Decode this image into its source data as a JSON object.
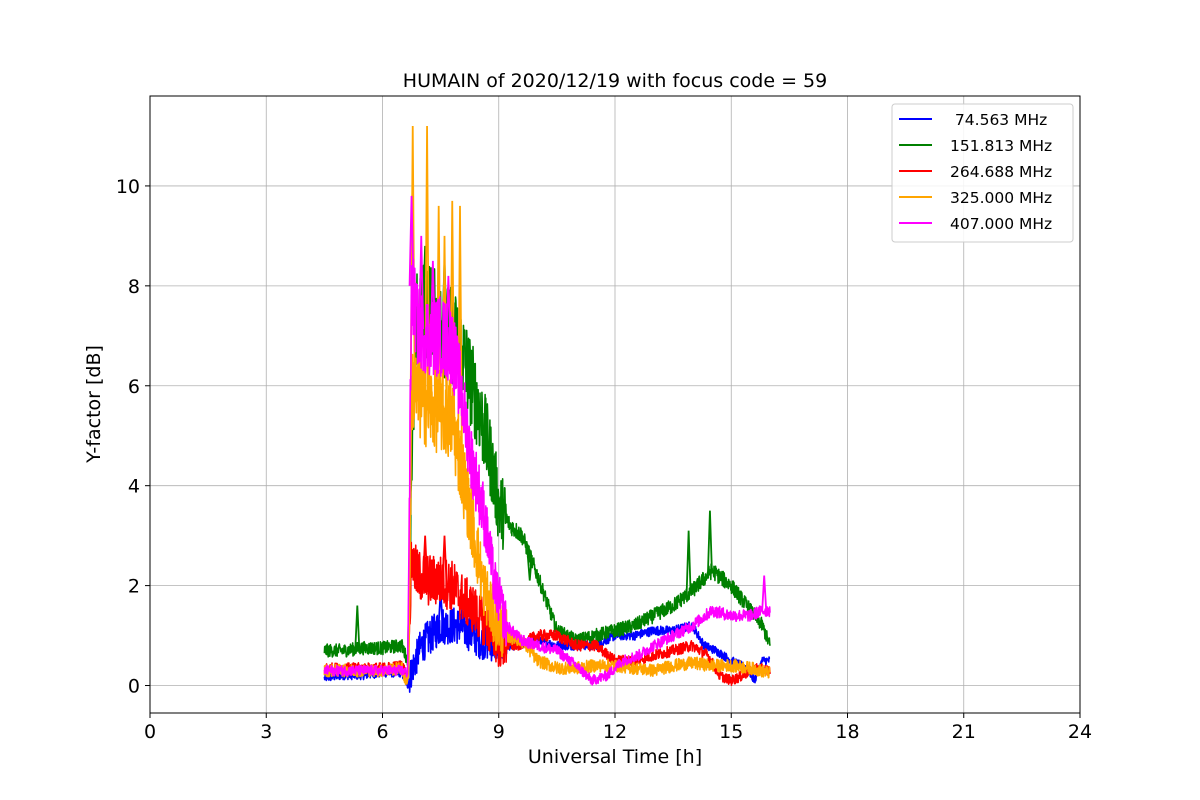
{
  "chart_data": {
    "type": "line",
    "title": "HUMAIN of 2020/12/19 with focus code = 59",
    "xlabel": "Universal Time [h]",
    "ylabel": "Y-factor [dB]",
    "xlim": [
      0,
      24
    ],
    "ylim": [
      -0.55,
      11.8
    ],
    "xticks": [
      0,
      3,
      6,
      9,
      12,
      15,
      18,
      21,
      24
    ],
    "yticks": [
      0,
      2,
      4,
      6,
      8,
      10
    ],
    "grid": true,
    "legend_position": "top-right",
    "series": [
      {
        "name": " 74.563 MHz",
        "color": "#0000ff",
        "noise": 0.08,
        "x": [
          4.5,
          5.0,
          5.5,
          6.0,
          6.5,
          6.65,
          6.75,
          7.0,
          7.5,
          8.0,
          8.5,
          9.0,
          9.5,
          10.0,
          10.5,
          11.0,
          11.5,
          12.0,
          12.5,
          13.0,
          13.5,
          14.0,
          14.3,
          14.6,
          15.0,
          15.4,
          15.6,
          15.8,
          16.0
        ],
        "y": [
          0.15,
          0.2,
          0.2,
          0.25,
          0.25,
          0.0,
          0.3,
          0.8,
          1.2,
          1.2,
          0.9,
          0.8,
          0.8,
          0.9,
          0.8,
          0.8,
          0.8,
          1.0,
          1.0,
          1.1,
          1.1,
          1.2,
          0.8,
          0.7,
          0.5,
          0.35,
          0.1,
          0.5,
          0.5
        ]
      },
      {
        "name": "151.813 MHz",
        "color": "#008000",
        "noise": 0.12,
        "x": [
          4.5,
          5.0,
          5.5,
          6.0,
          6.5,
          6.65,
          6.75,
          6.9,
          7.2,
          7.5,
          7.8,
          8.0,
          8.5,
          8.8,
          9.0,
          9.3,
          9.6,
          10.0,
          10.5,
          11.0,
          11.5,
          12.0,
          12.5,
          13.0,
          13.5,
          14.0,
          14.5,
          15.0,
          15.5,
          15.8,
          16.0
        ],
        "y": [
          0.7,
          0.7,
          0.75,
          0.75,
          0.8,
          0.5,
          4.5,
          7.5,
          7.5,
          7.2,
          7.0,
          6.8,
          5.5,
          4.5,
          3.6,
          3.2,
          3.0,
          2.2,
          1.1,
          0.9,
          1.0,
          1.1,
          1.2,
          1.4,
          1.6,
          1.9,
          2.3,
          2.0,
          1.5,
          1.2,
          0.8
        ]
      },
      {
        "name": "264.688 MHz",
        "color": "#ff0000",
        "noise": 0.1,
        "x": [
          4.5,
          5.0,
          5.5,
          6.0,
          6.5,
          6.65,
          6.75,
          6.9,
          7.2,
          7.5,
          7.8,
          8.0,
          8.5,
          9.0,
          9.5,
          10.0,
          10.5,
          11.0,
          11.5,
          12.0,
          12.5,
          13.0,
          13.5,
          14.0,
          14.4,
          14.7,
          15.0,
          15.3,
          15.6,
          16.0
        ],
        "y": [
          0.35,
          0.35,
          0.35,
          0.35,
          0.4,
          0.2,
          2.5,
          2.2,
          2.1,
          2.1,
          2.0,
          1.8,
          1.4,
          0.8,
          0.8,
          1.0,
          1.0,
          0.8,
          0.8,
          0.5,
          0.5,
          0.6,
          0.7,
          0.8,
          0.6,
          0.2,
          0.1,
          0.2,
          0.35,
          0.3
        ]
      },
      {
        "name": "325.000 MHz",
        "color": "#ffa500",
        "noise": 0.12,
        "x": [
          4.5,
          5.0,
          5.5,
          6.0,
          6.5,
          6.6,
          6.68,
          6.75,
          6.9,
          7.2,
          7.5,
          7.8,
          8.0,
          8.3,
          8.6,
          8.9,
          9.2,
          9.6,
          10.0,
          10.5,
          11.0,
          11.5,
          12.0,
          12.5,
          13.0,
          13.5,
          14.0,
          14.5,
          15.0,
          15.5,
          16.0
        ],
        "y": [
          0.3,
          0.3,
          0.3,
          0.3,
          0.35,
          0.05,
          0.3,
          6.0,
          5.8,
          5.6,
          5.5,
          5.3,
          4.5,
          3.3,
          2.0,
          1.3,
          1.0,
          0.9,
          0.5,
          0.35,
          0.35,
          0.4,
          0.4,
          0.35,
          0.3,
          0.4,
          0.45,
          0.4,
          0.4,
          0.35,
          0.25
        ]
      },
      {
        "name": "407.000 MHz",
        "color": "#ff00ff",
        "noise": 0.1,
        "x": [
          4.5,
          5.0,
          5.5,
          6.0,
          6.5,
          6.65,
          6.75,
          6.9,
          7.2,
          7.5,
          7.8,
          8.0,
          8.3,
          8.6,
          8.9,
          9.2,
          9.6,
          10.0,
          10.5,
          11.0,
          11.4,
          11.8,
          12.2,
          12.6,
          13.0,
          13.5,
          14.0,
          14.5,
          15.0,
          15.5,
          15.8,
          16.0
        ],
        "y": [
          0.3,
          0.3,
          0.3,
          0.3,
          0.3,
          0.25,
          8.0,
          7.2,
          7.0,
          7.0,
          6.8,
          6.0,
          4.5,
          3.5,
          2.0,
          1.2,
          0.9,
          0.8,
          0.7,
          0.4,
          0.1,
          0.2,
          0.5,
          0.6,
          0.8,
          1.0,
          1.2,
          1.5,
          1.4,
          1.4,
          1.5,
          1.5
        ]
      }
    ],
    "spikes": [
      {
        "series": "325.000 MHz",
        "peaks": [
          [
            6.78,
            11.2
          ],
          [
            7.15,
            11.2
          ],
          [
            7.45,
            9.6
          ],
          [
            7.8,
            9.7
          ],
          [
            7.6,
            9.0
          ],
          [
            8.0,
            9.6
          ]
        ]
      },
      {
        "series": "407.000 MHz",
        "peaks": [
          [
            6.75,
            9.8
          ],
          [
            7.0,
            9.0
          ],
          [
            7.3,
            8.5
          ],
          [
            7.7,
            8.2
          ],
          [
            15.85,
            2.2
          ]
        ]
      },
      {
        "series": "151.813 MHz",
        "peaks": [
          [
            5.35,
            1.6
          ],
          [
            7.1,
            8.8
          ],
          [
            7.6,
            8.5
          ],
          [
            9.8,
            2.1
          ],
          [
            14.45,
            3.5
          ],
          [
            13.9,
            3.1
          ]
        ]
      },
      {
        "series": "264.688 MHz",
        "peaks": [
          [
            7.1,
            3.0
          ],
          [
            7.6,
            3.0
          ]
        ]
      },
      {
        "series": " 74.563 MHz",
        "peaks": [
          [
            7.5,
            1.9
          ]
        ]
      }
    ]
  }
}
